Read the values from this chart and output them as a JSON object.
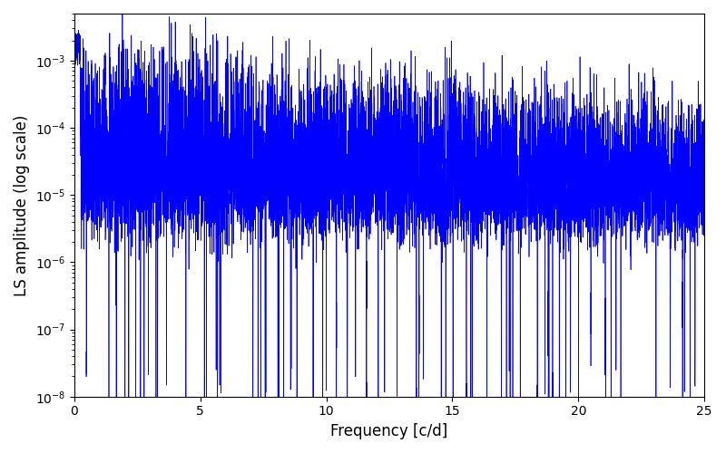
{
  "title": "",
  "xlabel": "Frequency [c/d]",
  "ylabel": "LS amplitude (log scale)",
  "xlim": [
    0,
    25
  ],
  "ylim": [
    1e-08,
    0.005
  ],
  "line_color": "#0000ff",
  "linewidth": 0.5,
  "yscale": "log",
  "figsize": [
    8.0,
    5.0
  ],
  "dpi": 100,
  "seed": 42,
  "n_points": 8000,
  "freq_max": 25.0,
  "background_color": "#ffffff"
}
